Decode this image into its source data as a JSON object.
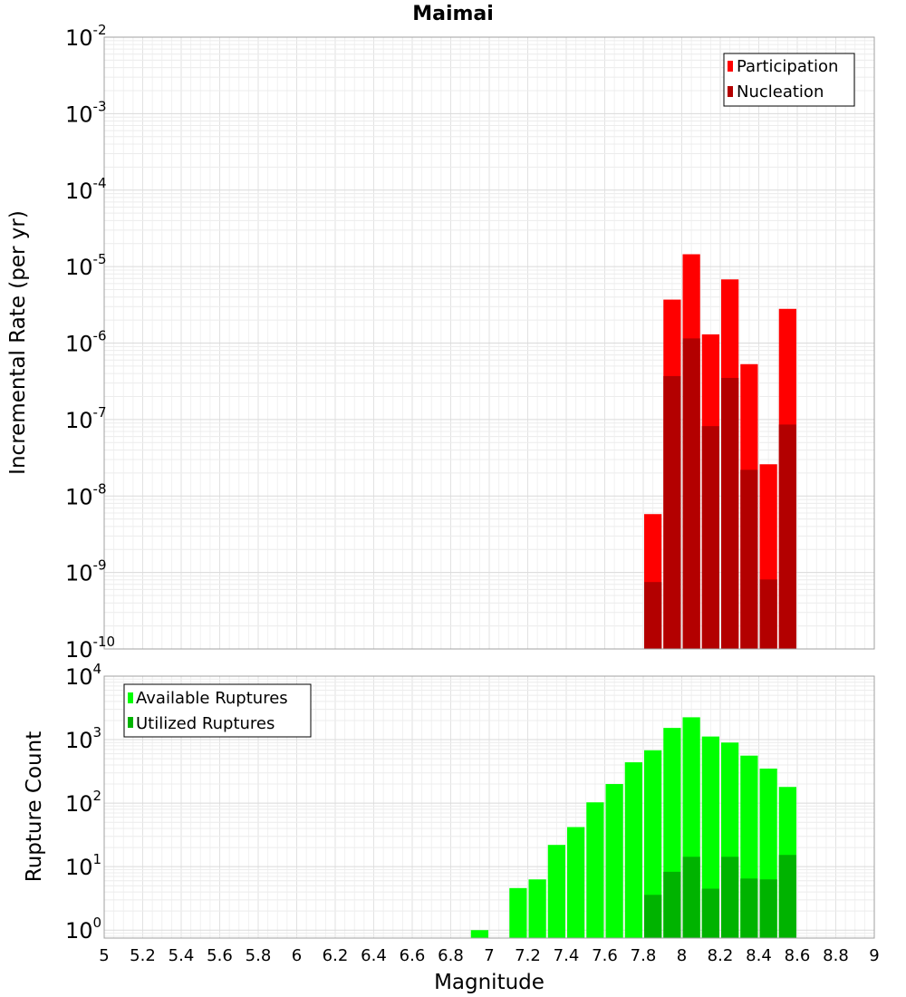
{
  "chart_data": [
    {
      "type": "bar",
      "title": "Maimai",
      "xlabel": "",
      "ylabel": "Incremental Rate (per yr)",
      "yscale": "log",
      "ylim": [
        1e-10,
        0.01
      ],
      "xlim": [
        5,
        9
      ],
      "yticks": [
        {
          "base": "10",
          "exp": "-10"
        },
        {
          "base": "10",
          "exp": "-9"
        },
        {
          "base": "10",
          "exp": "-8"
        },
        {
          "base": "10",
          "exp": "-7"
        },
        {
          "base": "10",
          "exp": "-6"
        },
        {
          "base": "10",
          "exp": "-5"
        },
        {
          "base": "10",
          "exp": "-4"
        },
        {
          "base": "10",
          "exp": "-3"
        },
        {
          "base": "10",
          "exp": "-2"
        }
      ],
      "legend": [
        "Participation",
        "Nucleation"
      ],
      "legend_position": "top-right",
      "series": [
        {
          "name": "Participation",
          "color": "#ff0000",
          "x": [
            7.85,
            7.95,
            8.05,
            8.15,
            8.25,
            8.35,
            8.45,
            8.55
          ],
          "values": [
            5.8e-09,
            3.7e-06,
            1.45e-05,
            1.3e-06,
            6.8e-06,
            5.3e-07,
            2.6e-08,
            2.8e-06
          ]
        },
        {
          "name": "Nucleation",
          "color": "#b30000",
          "x": [
            7.85,
            7.95,
            8.05,
            8.15,
            8.25,
            8.35,
            8.45,
            8.55
          ],
          "values": [
            7.5e-10,
            3.7e-07,
            1.15e-06,
            8.2e-08,
            3.5e-07,
            2.2e-08,
            8.1e-10,
            8.6e-08
          ]
        }
      ]
    },
    {
      "type": "bar",
      "title": "",
      "xlabel": "Magnitude",
      "ylabel": "Rupture Count",
      "yscale": "log",
      "ylim": [
        0.75,
        10000
      ],
      "xlim": [
        5,
        9
      ],
      "xticks": [
        "5",
        "5.2",
        "5.4",
        "5.6",
        "5.8",
        "6",
        "6.2",
        "6.4",
        "6.6",
        "6.8",
        "7",
        "7.2",
        "7.4",
        "7.6",
        "7.8",
        "8",
        "8.2",
        "8.4",
        "8.6",
        "8.8",
        "9"
      ],
      "yticks": [
        {
          "base": "10",
          "exp": "0"
        },
        {
          "base": "10",
          "exp": "1"
        },
        {
          "base": "10",
          "exp": "2"
        },
        {
          "base": "10",
          "exp": "3"
        },
        {
          "base": "10",
          "exp": "4"
        }
      ],
      "legend": [
        "Available Ruptures",
        "Utilized Ruptures"
      ],
      "legend_position": "top-left",
      "series": [
        {
          "name": "Available Ruptures",
          "color": "#00ff00",
          "x": [
            6.95,
            7.15,
            7.25,
            7.35,
            7.45,
            7.55,
            7.65,
            7.75,
            7.85,
            7.95,
            8.05,
            8.15,
            8.25,
            8.35,
            8.45,
            8.55
          ],
          "values": [
            1,
            4.6,
            6.3,
            22,
            42,
            103,
            200,
            440,
            680,
            1530,
            2250,
            1120,
            900,
            560,
            350,
            180
          ]
        },
        {
          "name": "Utilized Ruptures",
          "color": "#00b300",
          "x": [
            7.85,
            7.95,
            8.05,
            8.15,
            8.25,
            8.35,
            8.45,
            8.55
          ],
          "values": [
            3.6,
            8.3,
            14.3,
            4.5,
            14.3,
            6.5,
            6.3,
            15.3
          ]
        }
      ]
    }
  ]
}
